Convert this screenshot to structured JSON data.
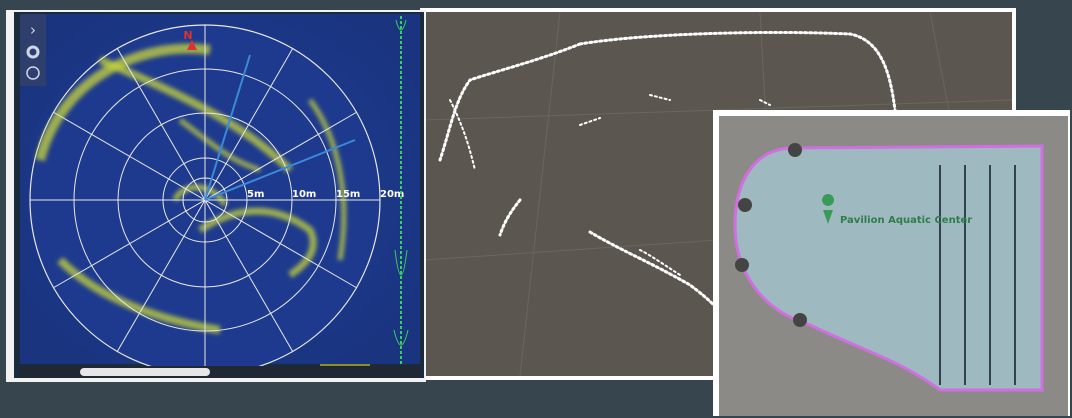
{
  "sonar": {
    "north_label": "N",
    "range_labels": [
      "5m",
      "10m",
      "15m",
      "20m"
    ]
  },
  "map": {
    "place_label": "Pavilion Aquatic Center"
  }
}
